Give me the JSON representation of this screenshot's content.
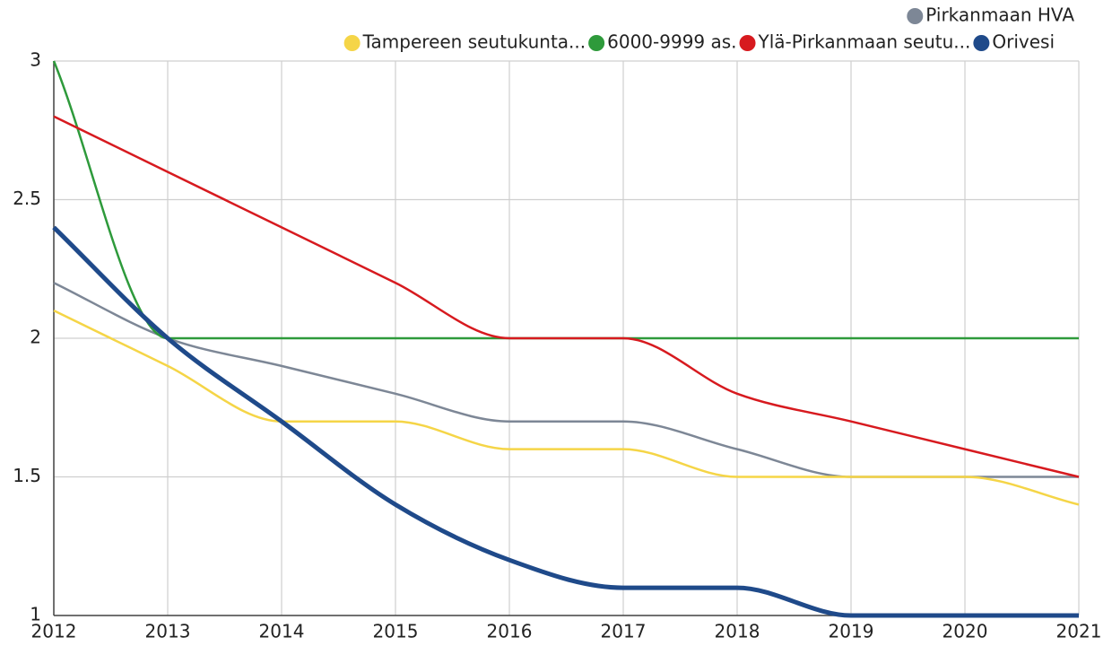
{
  "chart_data": {
    "type": "line",
    "x": [
      2012,
      2013,
      2014,
      2015,
      2016,
      2017,
      2018,
      2019,
      2020,
      2021
    ],
    "xlim": [
      2012,
      2021
    ],
    "xticks": [
      2012,
      2013,
      2014,
      2015,
      2016,
      2017,
      2018,
      2019,
      2020,
      2021
    ],
    "ylim": [
      1,
      3
    ],
    "yticks": [
      1,
      1.5,
      2,
      2.5,
      3
    ],
    "grid": true,
    "legend": "top-right",
    "smooth": true,
    "series": [
      {
        "name": "Pirkanmaan HVA",
        "color": "#7d8796",
        "line_width": 2.5,
        "values": [
          2.2,
          2.0,
          1.9,
          1.8,
          1.7,
          1.7,
          1.6,
          1.5,
          1.5,
          1.5
        ]
      },
      {
        "name": "Tampereen seutukunta...",
        "color": "#f5d547",
        "line_width": 2.5,
        "values": [
          2.1,
          1.9,
          1.7,
          1.7,
          1.6,
          1.6,
          1.5,
          1.5,
          1.5,
          1.4
        ]
      },
      {
        "name": "6000-9999 as.",
        "color": "#2e9a3b",
        "line_width": 2.5,
        "values": [
          3.0,
          2.0,
          2.0,
          2.0,
          2.0,
          2.0,
          2.0,
          2.0,
          2.0,
          2.0
        ]
      },
      {
        "name": "Ylä-Pirkanmaan seutu...",
        "color": "#d71a1f",
        "line_width": 2.5,
        "values": [
          2.8,
          2.6,
          2.4,
          2.2,
          2.0,
          2.0,
          1.8,
          1.7,
          1.6,
          1.5
        ]
      },
      {
        "name": "Orivesi",
        "color": "#1f4a8a",
        "line_width": 5,
        "values": [
          2.4,
          2.0,
          1.7,
          1.4,
          1.2,
          1.1,
          1.1,
          1.0,
          1.0,
          1.0
        ]
      }
    ]
  }
}
